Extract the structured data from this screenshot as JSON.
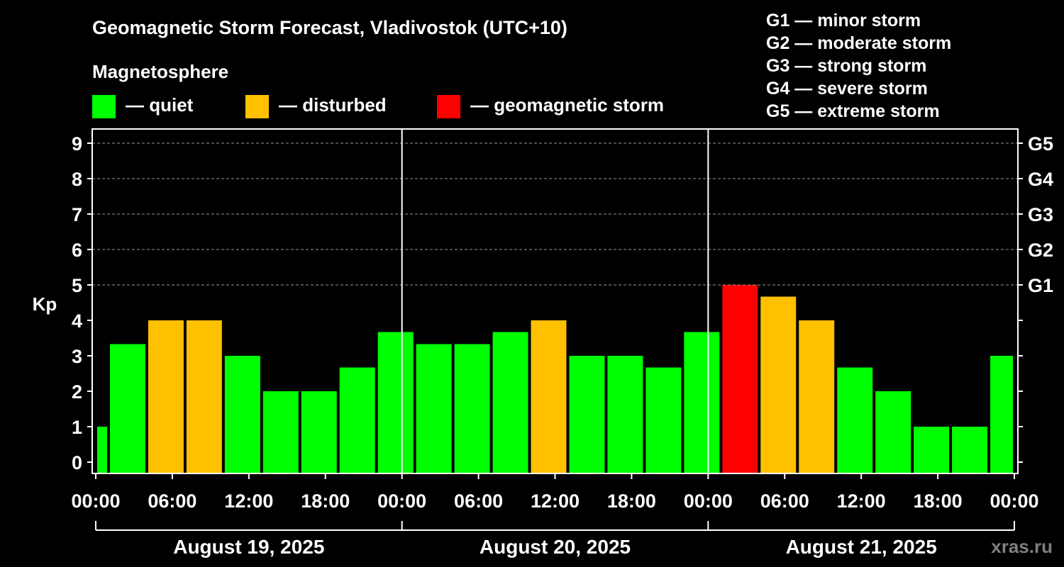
{
  "chart_data": {
    "type": "bar",
    "title": "Geomagnetic Storm Forecast, Vladivostok (UTC+10)",
    "ylabel": "Kp",
    "ylim": [
      0,
      9
    ],
    "yticks": [
      "0",
      "1",
      "2",
      "3",
      "4",
      "5",
      "6",
      "7",
      "8",
      "9"
    ],
    "right_ticks": [
      {
        "kp": 5,
        "label": "G1"
      },
      {
        "kp": 6,
        "label": "G2"
      },
      {
        "kp": 7,
        "label": "G3"
      },
      {
        "kp": 8,
        "label": "G4"
      },
      {
        "kp": 9,
        "label": "G5"
      }
    ],
    "grid": "dashed horizontal at Kp 5-9",
    "legend": {
      "heading": "Magnetosphere",
      "items": [
        {
          "label": "— quiet",
          "color": "#00ff00"
        },
        {
          "label": "— disturbed",
          "color": "#ffc000"
        },
        {
          "label": "— geomagnetic storm",
          "color": "#ff0000"
        }
      ]
    },
    "scale": [
      "G1 — minor storm",
      "G2 — moderate storm",
      "G3 — strong storm",
      "G4 — severe storm",
      "G5 — extreme storm"
    ],
    "x_range_hours": [
      0,
      72
    ],
    "xtick_labels": [
      "00:00",
      "06:00",
      "12:00",
      "18:00",
      "00:00",
      "06:00",
      "12:00",
      "18:00",
      "00:00",
      "06:00",
      "12:00",
      "18:00",
      "00:00"
    ],
    "days": [
      "August 19, 2025",
      "August 20, 2025",
      "August 21, 2025"
    ],
    "bars": [
      {
        "start": 0,
        "end": 1,
        "kp": 1.0,
        "level": "quiet"
      },
      {
        "start": 1,
        "end": 4,
        "kp": 3.33,
        "level": "quiet"
      },
      {
        "start": 4,
        "end": 7,
        "kp": 4.0,
        "level": "disturbed"
      },
      {
        "start": 7,
        "end": 10,
        "kp": 4.0,
        "level": "disturbed"
      },
      {
        "start": 10,
        "end": 13,
        "kp": 3.0,
        "level": "quiet"
      },
      {
        "start": 13,
        "end": 16,
        "kp": 2.0,
        "level": "quiet"
      },
      {
        "start": 16,
        "end": 19,
        "kp": 2.0,
        "level": "quiet"
      },
      {
        "start": 19,
        "end": 22,
        "kp": 2.67,
        "level": "quiet"
      },
      {
        "start": 22,
        "end": 25,
        "kp": 3.67,
        "level": "quiet"
      },
      {
        "start": 25,
        "end": 28,
        "kp": 3.33,
        "level": "quiet"
      },
      {
        "start": 28,
        "end": 31,
        "kp": 3.33,
        "level": "quiet"
      },
      {
        "start": 31,
        "end": 34,
        "kp": 3.67,
        "level": "quiet"
      },
      {
        "start": 34,
        "end": 37,
        "kp": 4.0,
        "level": "disturbed"
      },
      {
        "start": 37,
        "end": 40,
        "kp": 3.0,
        "level": "quiet"
      },
      {
        "start": 40,
        "end": 43,
        "kp": 3.0,
        "level": "quiet"
      },
      {
        "start": 43,
        "end": 46,
        "kp": 2.67,
        "level": "quiet"
      },
      {
        "start": 46,
        "end": 49,
        "kp": 3.67,
        "level": "quiet"
      },
      {
        "start": 49,
        "end": 52,
        "kp": 5.0,
        "level": "storm"
      },
      {
        "start": 52,
        "end": 55,
        "kp": 4.67,
        "level": "disturbed"
      },
      {
        "start": 55,
        "end": 58,
        "kp": 4.0,
        "level": "disturbed"
      },
      {
        "start": 58,
        "end": 61,
        "kp": 2.67,
        "level": "quiet"
      },
      {
        "start": 61,
        "end": 64,
        "kp": 2.0,
        "level": "quiet"
      },
      {
        "start": 64,
        "end": 67,
        "kp": 1.0,
        "level": "quiet"
      },
      {
        "start": 67,
        "end": 70,
        "kp": 1.0,
        "level": "quiet"
      },
      {
        "start": 70,
        "end": 72,
        "kp": 3.0,
        "level": "quiet"
      }
    ],
    "colors": {
      "quiet": "#00ff00",
      "disturbed": "#ffc000",
      "storm": "#ff0000"
    },
    "source": "xras.ru"
  }
}
